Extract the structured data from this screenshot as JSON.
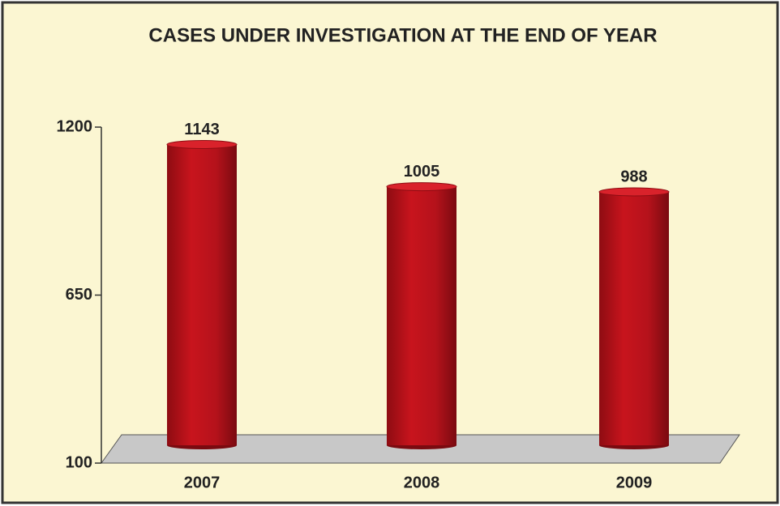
{
  "chart_data": {
    "type": "bar",
    "title": "CASES UNDER INVESTIGATION AT THE END OF YEAR",
    "categories": [
      "2007",
      "2008",
      "2009"
    ],
    "values": [
      1143,
      1005,
      988
    ],
    "color": "#b5121b",
    "ylim": [
      100,
      1200
    ],
    "yticks": [
      100,
      650,
      1200
    ]
  }
}
